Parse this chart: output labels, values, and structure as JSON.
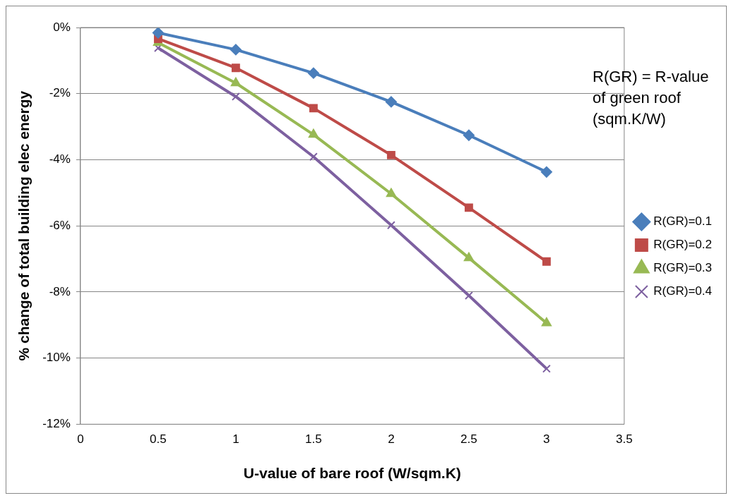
{
  "chart_data": {
    "type": "line",
    "xlabel": "U-value of bare roof (W/sqm.K)",
    "ylabel": "% change of total building elec energy",
    "annotations": [
      "R(GR) = R-value of green roof (sqm.K/W)"
    ],
    "x": [
      0.5,
      1,
      1.5,
      2,
      2.5,
      3
    ],
    "series": [
      {
        "name": "R(GR)=0.1",
        "color": "#4a7ebb",
        "marker": "diamond",
        "values": [
          -0.16,
          -0.67,
          -1.38,
          -2.25,
          -3.26,
          -4.37
        ]
      },
      {
        "name": "R(GR)=0.2",
        "color": "#be4b48",
        "marker": "square",
        "values": [
          -0.34,
          -1.22,
          -2.44,
          -3.86,
          -5.45,
          -7.08
        ]
      },
      {
        "name": "R(GR)=0.3",
        "color": "#98b954",
        "marker": "triangle",
        "values": [
          -0.46,
          -1.68,
          -3.24,
          -5.03,
          -6.97,
          -8.94
        ]
      },
      {
        "name": "R(GR)=0.4",
        "color": "#7d60a0",
        "marker": "cross",
        "values": [
          -0.62,
          -2.09,
          -3.91,
          -5.98,
          -8.11,
          -10.32
        ]
      }
    ],
    "xlim": [
      0,
      3.5
    ],
    "xticks": [
      0,
      0.5,
      1,
      1.5,
      2,
      2.5,
      3,
      3.5
    ],
    "ylim": [
      -12,
      0
    ],
    "yticks": [
      {
        "value": 0,
        "label": "0%"
      },
      {
        "value": -2,
        "label": "-2%"
      },
      {
        "value": -4,
        "label": "-4%"
      },
      {
        "value": -6,
        "label": "-6%"
      },
      {
        "value": -8,
        "label": "-8%"
      },
      {
        "value": -10,
        "label": "-10%"
      },
      {
        "value": -12,
        "label": "-12%"
      }
    ],
    "grid": "y",
    "legend": "right",
    "line_style": "solid"
  }
}
